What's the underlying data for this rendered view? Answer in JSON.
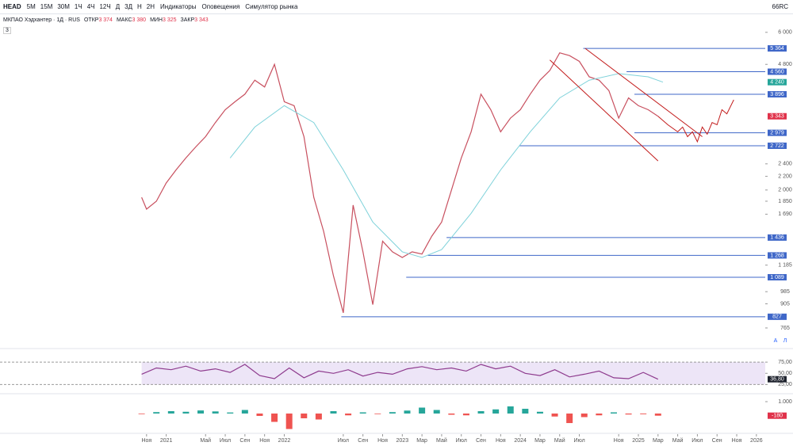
{
  "toolbar": {
    "symbol": "HEAD",
    "intervals": [
      "5М",
      "15М",
      "30М",
      "1Ч",
      "4Ч",
      "12Ч",
      "Д",
      "3Д",
      "Н",
      "2Н"
    ],
    "indicators": "Индикаторы",
    "alerts": "Оповещения",
    "replay": "Симулятор рынка",
    "account": "66RC"
  },
  "legend": {
    "title": "МКПАО Хэдхантер · 1Д · RUS",
    "badge": "3",
    "fields": [
      {
        "label": "ОТКР",
        "value": "3 374"
      },
      {
        "label": "МАКС",
        "value": "3 380"
      },
      {
        "label": "МИН",
        "value": "3 325"
      },
      {
        "label": "ЗАКР",
        "value": "3 343"
      }
    ]
  },
  "scale_buttons": [
    "A",
    "Л"
  ],
  "chart_data": [
    {
      "type": "line",
      "log_scale": true,
      "xlim": [
        -4.9,
        72.9
      ],
      "ylim": [
        670,
        6730
      ],
      "xticks": [
        {
          "value": 10,
          "label": "Ноя"
        },
        {
          "value": 12,
          "label": "2021"
        },
        {
          "value": 16,
          "label": "Май"
        },
        {
          "value": 18,
          "label": "Июл"
        },
        {
          "value": 20,
          "label": "Сен"
        },
        {
          "value": 22,
          "label": "Ноя"
        },
        {
          "value": 24,
          "label": "2022"
        },
        {
          "value": 30,
          "label": "Июл"
        },
        {
          "value": 32,
          "label": "Сен"
        },
        {
          "value": 34,
          "label": "Ноя"
        },
        {
          "value": 36,
          "label": "2023"
        },
        {
          "value": 38,
          "label": "Мар"
        },
        {
          "value": 40,
          "label": "Май"
        },
        {
          "value": 42,
          "label": "Июл"
        },
        {
          "value": 44,
          "label": "Сен"
        },
        {
          "value": 46,
          "label": "Ноя"
        },
        {
          "value": 48,
          "label": "2024"
        },
        {
          "value": 50,
          "label": "Мар"
        },
        {
          "value": 52,
          "label": "Май"
        },
        {
          "value": 54,
          "label": "Июл"
        },
        {
          "value": 58,
          "label": "Ноя"
        },
        {
          "value": 60,
          "label": "2025"
        },
        {
          "value": 62,
          "label": "Мар"
        },
        {
          "value": 64,
          "label": "Май"
        },
        {
          "value": 66,
          "label": "Июл"
        },
        {
          "value": 68,
          "label": "Сен"
        },
        {
          "value": 70,
          "label": "Ноя"
        },
        {
          "value": 72,
          "label": "2026"
        }
      ],
      "yticks": [
        {
          "value": 6000,
          "label": "6 000"
        },
        {
          "value": 4800,
          "label": "4 800"
        },
        {
          "value": 2400,
          "label": "2 400"
        },
        {
          "value": 2200,
          "label": "2 200"
        },
        {
          "value": 2000,
          "label": "2 000"
        },
        {
          "value": 1850,
          "label": "1 850"
        },
        {
          "value": 1690,
          "label": "1 690"
        },
        {
          "value": 1185,
          "label": "1 185"
        },
        985,
        905,
        765
      ],
      "levels": [
        {
          "value": 5364,
          "label": "5 364",
          "start": 54.4
        },
        {
          "value": 4560,
          "label": "4 560",
          "start": 58.8
        },
        {
          "value": 3896,
          "label": "3 896",
          "start": 59.6
        },
        {
          "value": 2979,
          "label": "2 979",
          "start": 59.6
        },
        {
          "value": 2722,
          "label": "2 722",
          "start": 47.9
        },
        {
          "value": 1436,
          "label": "1 436",
          "start": 40.5
        },
        {
          "value": 1268,
          "label": "1 268",
          "start": 38.6
        },
        {
          "value": 1089,
          "label": "1 089",
          "start": 36.4
        },
        {
          "value": 827,
          "start": 29.8
        }
      ],
      "level_color": "#3f67c8",
      "markers": [
        {
          "value": 4240,
          "label": "4 240",
          "color": "#26a69a"
        },
        {
          "value": 3343,
          "label": "3 343",
          "color": "#e0324a"
        }
      ],
      "series": [
        {
          "name": "МКПАО Хэдхантер",
          "color": "#c8505f",
          "x": [
            9.5,
            10,
            11,
            12,
            13,
            14,
            15,
            16,
            17,
            18,
            19,
            20,
            21,
            22,
            23,
            24,
            25,
            26,
            27,
            28,
            29,
            30,
            31,
            32,
            33,
            34,
            35,
            36,
            37,
            38,
            39,
            40,
            41,
            42,
            43,
            44,
            45,
            46,
            47,
            48,
            49,
            50,
            51,
            52,
            53,
            54,
            55,
            56,
            57,
            58,
            59,
            60,
            61,
            62
          ],
          "values": [
            1900,
            1750,
            1850,
            2100,
            2300,
            2500,
            2700,
            2900,
            3200,
            3500,
            3700,
            3900,
            4300,
            4100,
            4800,
            3700,
            3600,
            2900,
            1900,
            1500,
            1100,
            850,
            1800,
            1300,
            900,
            1400,
            1300,
            1250,
            1300,
            1280,
            1450,
            1600,
            2000,
            2500,
            3000,
            3900,
            3500,
            3000,
            3300,
            3500,
            3900,
            4300,
            4600,
            5200,
            5100,
            4900,
            4400,
            4300,
            4000,
            3300,
            3800,
            3600,
            3500,
            3343
          ]
        },
        {
          "name": "MA",
          "color": "#7fd2da",
          "x": [
            18.5,
            21,
            24,
            27,
            30,
            33,
            36,
            38,
            40,
            43,
            46,
            49,
            52,
            55,
            58,
            61,
            62.5
          ],
          "values": [
            2500,
            3100,
            3600,
            3200,
            2300,
            1600,
            1300,
            1250,
            1320,
            1700,
            2300,
            3000,
            3800,
            4300,
            4500,
            4400,
            4240
          ]
        },
        {
          "name": "Прогноз",
          "color": "#c21a1a",
          "x": [
            62,
            63,
            64,
            64.5,
            65,
            65.5,
            66,
            66.5,
            67,
            67.5,
            68,
            68.5,
            69,
            69.7
          ],
          "values": [
            3343,
            3150,
            3000,
            3100,
            2900,
            3000,
            2800,
            3100,
            2950,
            3200,
            3150,
            3500,
            3400,
            3750
          ]
        },
        {
          "name": "Канал верх",
          "color": "#c21a1a",
          "x": [
            54.6,
            66.5
          ],
          "values": [
            5364,
            2900
          ]
        },
        {
          "name": "Канал низ",
          "color": "#c21a1a",
          "x": [
            51,
            62
          ],
          "values": [
            4950,
            2450
          ]
        }
      ]
    },
    {
      "type": "line",
      "xlim": [
        -4.9,
        72.9
      ],
      "ylim": [
        8,
        100
      ],
      "band": [
        25,
        75
      ],
      "yticks": [
        {
          "value": 75,
          "label": "75,00"
        },
        {
          "value": 50,
          "label": "50,00"
        },
        {
          "value": 25,
          "label": "25,00"
        }
      ],
      "markers": [
        {
          "value": 36.8,
          "label": "36,80",
          "color": "#1e222d"
        }
      ],
      "series": [
        {
          "name": "RSI",
          "color": "#8e3b8e",
          "x": [
            9.5,
            11,
            12.5,
            14,
            15.5,
            17,
            18.5,
            20,
            21.5,
            23,
            24.5,
            26,
            27.5,
            29,
            30.5,
            32,
            33.5,
            35,
            36.5,
            38,
            39.5,
            41,
            42.5,
            44,
            45.5,
            47,
            48.5,
            50,
            51.5,
            53,
            54.5,
            56,
            57.5,
            59,
            60.5,
            62
          ],
          "values": [
            48,
            62,
            58,
            66,
            55,
            60,
            52,
            70,
            45,
            38,
            62,
            40,
            55,
            50,
            58,
            44,
            52,
            48,
            60,
            65,
            58,
            62,
            55,
            70,
            60,
            66,
            50,
            45,
            58,
            42,
            48,
            55,
            40,
            38,
            52,
            36.8
          ]
        }
      ]
    },
    {
      "type": "bar",
      "xlim": [
        -4.9,
        72.9
      ],
      "ylim": [
        -1530,
        1600
      ],
      "yticks": [
        {
          "value": 1000,
          "label": "1.000"
        }
      ],
      "markers": [
        {
          "value": -180,
          "label": "-180",
          "color": "#e0324a"
        }
      ],
      "pos_color": "#26a69a",
      "neg_color": "#ef5350",
      "x": [
        9.5,
        11,
        12.5,
        14,
        15.5,
        17,
        18.5,
        20,
        21.5,
        23,
        24.5,
        26,
        27.5,
        29,
        30.5,
        32,
        33.5,
        35,
        36.5,
        38,
        39.5,
        41,
        42.5,
        44,
        45.5,
        47,
        48.5,
        50,
        51.5,
        53,
        54.5,
        56,
        57.5,
        59,
        60.5,
        62
      ],
      "values": [
        -50,
        120,
        200,
        150,
        260,
        180,
        90,
        300,
        -200,
        -700,
        -1300,
        -400,
        -500,
        200,
        -150,
        100,
        -50,
        120,
        250,
        500,
        300,
        -100,
        -150,
        200,
        350,
        600,
        400,
        150,
        -250,
        -800,
        -300,
        -150,
        100,
        -80,
        -60,
        -180
      ]
    }
  ]
}
